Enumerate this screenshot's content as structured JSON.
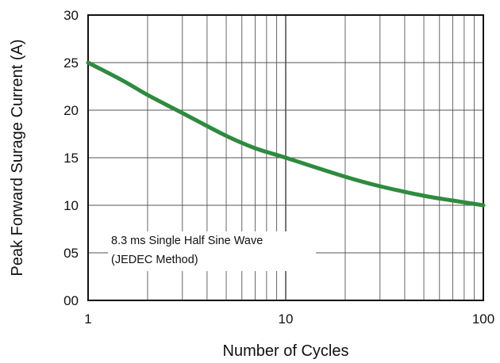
{
  "chart_data": {
    "type": "line",
    "title": "",
    "xlabel": "Number of Cycles",
    "ylabel": "Peak Forward Surage Current (A)",
    "x_scale": "log",
    "xlim": [
      1,
      100
    ],
    "ylim": [
      0,
      30
    ],
    "x_ticks": [
      {
        "value": 1,
        "label": "1"
      },
      {
        "value": 10,
        "label": "10"
      },
      {
        "value": 100,
        "label": "100"
      }
    ],
    "y_ticks": [
      {
        "value": 0,
        "label": "00"
      },
      {
        "value": 5,
        "label": "05"
      },
      {
        "value": 10,
        "label": "10"
      },
      {
        "value": 15,
        "label": "15"
      },
      {
        "value": 20,
        "label": "20"
      },
      {
        "value": 25,
        "label": "25"
      },
      {
        "value": 30,
        "label": "30"
      }
    ],
    "grid": true,
    "line_color": "#2e8b3e",
    "series": [
      {
        "x": [
          1,
          1.5,
          2,
          3,
          5,
          7,
          10,
          20,
          30,
          50,
          70,
          100
        ],
        "y": [
          25,
          23.1,
          21.6,
          19.7,
          17.3,
          16.0,
          15.0,
          13.0,
          12.0,
          11.0,
          10.5,
          10.0
        ]
      }
    ],
    "annotation": {
      "lines": [
        "8.3 ms Single Half Sine Wave",
        "(JEDEC Method)"
      ]
    }
  }
}
